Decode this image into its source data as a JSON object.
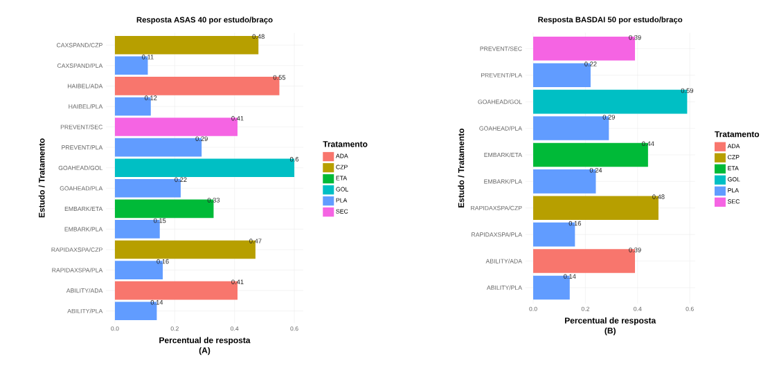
{
  "chart_data": [
    {
      "type": "bar",
      "orientation": "horizontal",
      "title": "Resposta ASAS 40 por estudo/braço",
      "xlabel": "Percentual de resposta",
      "ylabel": "Estudo / Tratamento",
      "legend_title": "Tratamento",
      "annotations": [
        "(A)"
      ],
      "categories": [
        "CAXSPAND/CZP",
        "CAXSPAND/PLA",
        "HAIBEL/ADA",
        "HAIBEL/PLA",
        "PREVENT/SEC",
        "PREVENT/PLA",
        "GOAHEAD/GOL",
        "GOAHEAD/PLA",
        "EMBARK/ETA",
        "EMBARK/PLA",
        "RAPIDAXSPA/CZP",
        "RAPIDAXSPA/PLA",
        "ABILITY/ADA",
        "ABILITY/PLA"
      ],
      "series": [
        {
          "name": "ADA",
          "color": "#f8766d",
          "values": [
            null,
            null,
            0.55,
            null,
            null,
            null,
            null,
            null,
            null,
            null,
            null,
            null,
            0.41,
            null
          ]
        },
        {
          "name": "CZP",
          "color": "#b79f00",
          "values": [
            0.48,
            null,
            null,
            null,
            null,
            null,
            null,
            null,
            null,
            null,
            0.47,
            null,
            null,
            null
          ]
        },
        {
          "name": "ETA",
          "color": "#00ba38",
          "values": [
            null,
            null,
            null,
            null,
            null,
            null,
            null,
            null,
            0.33,
            null,
            null,
            null,
            null,
            null
          ]
        },
        {
          "name": "GOL",
          "color": "#00bfc4",
          "values": [
            null,
            null,
            null,
            null,
            null,
            null,
            0.6,
            null,
            null,
            null,
            null,
            null,
            null,
            null
          ]
        },
        {
          "name": "PLA",
          "color": "#619cff",
          "values": [
            null,
            0.11,
            null,
            0.12,
            null,
            0.29,
            null,
            0.22,
            null,
            0.15,
            null,
            0.16,
            null,
            0.14
          ]
        },
        {
          "name": "SEC",
          "color": "#f564e3",
          "values": [
            null,
            null,
            null,
            null,
            0.41,
            null,
            null,
            null,
            null,
            null,
            null,
            null,
            null,
            null
          ]
        }
      ],
      "xlim": [
        -0.03,
        0.63
      ],
      "xticks": [
        {
          "value": 0,
          "label": "0.0"
        },
        0.2,
        0.4,
        0.6
      ],
      "grid": true,
      "legend": "right",
      "data_labels": true
    },
    {
      "type": "bar",
      "orientation": "horizontal",
      "title": "Resposta BASDAI 50 por estudo/braço",
      "xlabel": "Percentual de resposta",
      "ylabel": "Estudo / Tratamento",
      "legend_title": "Tratamento",
      "annotations": [
        "(B)"
      ],
      "categories": [
        "PREVENT/SEC",
        "PREVENT/PLA",
        "GOAHEAD/GOL",
        "GOAHEAD/PLA",
        "EMBARK/ETA",
        "EMBARK/PLA",
        "RAPIDAXSPA/CZP",
        "RAPIDAXSPA/PLA",
        "ABILITY/ADA",
        "ABILITY/PLA"
      ],
      "series": [
        {
          "name": "ADA",
          "color": "#f8766d",
          "values": [
            null,
            null,
            null,
            null,
            null,
            null,
            null,
            null,
            0.39,
            null
          ]
        },
        {
          "name": "CZP",
          "color": "#b79f00",
          "values": [
            null,
            null,
            null,
            null,
            null,
            null,
            0.48,
            null,
            null,
            null
          ]
        },
        {
          "name": "ETA",
          "color": "#00ba38",
          "values": [
            null,
            null,
            null,
            null,
            0.44,
            null,
            null,
            null,
            null,
            null
          ]
        },
        {
          "name": "GOL",
          "color": "#00bfc4",
          "values": [
            null,
            null,
            0.59,
            null,
            null,
            null,
            null,
            null,
            null,
            null
          ]
        },
        {
          "name": "PLA",
          "color": "#619cff",
          "values": [
            null,
            0.22,
            null,
            0.29,
            null,
            0.24,
            null,
            0.16,
            null,
            0.14
          ]
        },
        {
          "name": "SEC",
          "color": "#f564e3",
          "values": [
            0.39,
            null,
            null,
            null,
            null,
            null,
            null,
            null,
            null,
            null
          ]
        }
      ],
      "xlim": [
        -0.03,
        0.62
      ],
      "xticks": [
        {
          "value": 0,
          "label": "0.0"
        },
        0.2,
        0.4,
        0.6
      ],
      "grid": true,
      "legend": "right",
      "data_labels": true
    }
  ]
}
